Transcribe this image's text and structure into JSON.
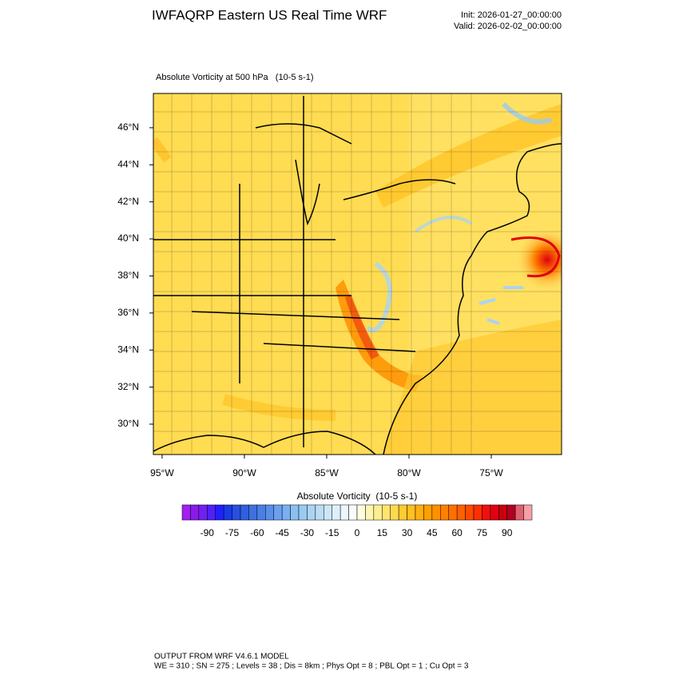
{
  "header": {
    "title": "IWFAQRP Eastern US Real Time WRF",
    "init": "Init: 2026-01-27_00:00:00",
    "valid": "Valid: 2026-02-02_00:00:00"
  },
  "map": {
    "subtitle": "Absolute Vorticity at 500 hPa   (10-5 s-1)",
    "xlim": [
      -95.53,
      -70.73
    ],
    "ylim": [
      28.36,
      47.85
    ],
    "xticks": [
      {
        "value": -95,
        "label": "95°W"
      },
      {
        "value": -90,
        "label": "90°W"
      },
      {
        "value": -85,
        "label": "85°W"
      },
      {
        "value": -80,
        "label": "80°W"
      },
      {
        "value": -75,
        "label": "75°W"
      }
    ],
    "yticks": [
      {
        "value": 30,
        "label": "30°N"
      },
      {
        "value": 32,
        "label": "32°N"
      },
      {
        "value": 34,
        "label": "34°N"
      },
      {
        "value": 36,
        "label": "36°N"
      },
      {
        "value": 38,
        "label": "38°N"
      },
      {
        "value": 40,
        "label": "40°N"
      },
      {
        "value": 42,
        "label": "42°N"
      },
      {
        "value": 44,
        "label": "44°N"
      },
      {
        "value": 46,
        "label": "46°N"
      }
    ]
  },
  "colorbar": {
    "title": "Absolute Vorticity  (10-5 s-1)",
    "lim": [
      -105,
      105
    ],
    "ticks": [
      -90,
      -75,
      -60,
      -45,
      -30,
      -15,
      0,
      15,
      30,
      45,
      60,
      75,
      90
    ],
    "colors": [
      "#a020f0",
      "#8b1ae8",
      "#7020f0",
      "#5020f8",
      "#2020ff",
      "#1a3ae8",
      "#2850e0",
      "#3060e0",
      "#4070e0",
      "#4a7fe8",
      "#5a8fe8",
      "#6aa0f0",
      "#7ab0f0",
      "#8ac0f0",
      "#9acaf0",
      "#aad4f4",
      "#bcdcf4",
      "#cce6f8",
      "#dcf0fa",
      "#ecf6fc",
      "#f8fafc",
      "#fffce0",
      "#fff5b0",
      "#ffee90",
      "#ffe470",
      "#ffd850",
      "#ffcc30",
      "#ffc020",
      "#ffb010",
      "#ffa000",
      "#ff9000",
      "#ff8000",
      "#ff7000",
      "#ff6000",
      "#ff4a00",
      "#ff3000",
      "#f01010",
      "#e00010",
      "#c80010",
      "#b00020",
      "#e06070",
      "#f4a0a8"
    ]
  },
  "footer": {
    "line1": "OUTPUT FROM WRF V4.6.1 MODEL",
    "line2": "WE = 310 ; SN = 275 ; Levels = 38 ; Dis = 8km ; Phys Opt = 8 ; PBL Opt = 1 ; Cu Opt = 3"
  }
}
